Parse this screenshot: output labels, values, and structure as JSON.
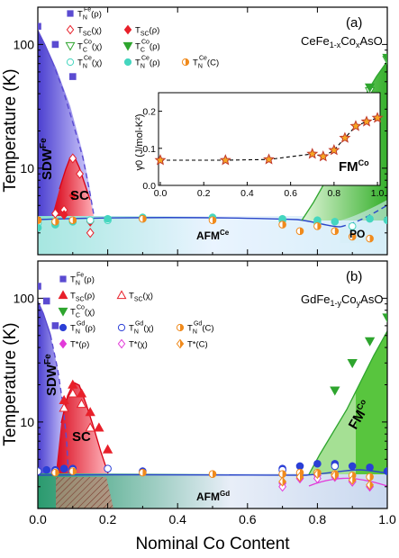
{
  "figure": {
    "xlabel": "Nominal Co Content",
    "x_ticks": [
      "0.0",
      "0.2",
      "0.4",
      "0.6",
      "0.8",
      "1.0"
    ]
  },
  "chart_data": [
    {
      "panel": "(a)",
      "type": "scatter",
      "formula": "CeFe1-xCoxAsO",
      "ylabel": "Temperature (K)",
      "yscale": "log",
      "xlim": [
        0,
        1
      ],
      "ylim": [
        2,
        200
      ],
      "y_ticks": [
        10,
        100
      ],
      "regions": [
        "SDW Fe",
        "SC",
        "AFM Ce",
        "FM Co",
        "PO"
      ],
      "legend": [
        {
          "label": "T_N^Fe(ρ)",
          "marker": "square",
          "color": "#5b4bd1",
          "filled": true
        },
        {
          "label": "T_SC(χ)",
          "marker": "diamond",
          "color": "#e8202a",
          "filled": false
        },
        {
          "label": "T_SC(ρ)",
          "marker": "diamond",
          "color": "#e8202a",
          "filled": true
        },
        {
          "label": "T_C^Co(χ)",
          "marker": "triangle-down",
          "color": "#2ea52e",
          "filled": false
        },
        {
          "label": "T_C^Co(ρ)",
          "marker": "triangle-down",
          "color": "#2ea52e",
          "filled": true
        },
        {
          "label": "T_N^Ce(χ)",
          "marker": "circle",
          "color": "#45d6bf",
          "filled": false
        },
        {
          "label": "T_N^Ce(ρ)",
          "marker": "circle",
          "color": "#45d6bf",
          "filled": true
        },
        {
          "label": "T_N^Ce(C)",
          "marker": "circle-half",
          "color": "#f08a1c",
          "filled": true
        }
      ],
      "series": [
        {
          "name": "T_N^Fe(ρ)",
          "x": [
            0.0,
            0.05,
            0.1
          ],
          "y": [
            140,
            100,
            55
          ]
        },
        {
          "name": "T_SC(χ)",
          "x": [
            0.05,
            0.075,
            0.1,
            0.12,
            0.15
          ],
          "y": [
            4.3,
            4.6,
            12.0,
            9.0,
            3.0
          ]
        },
        {
          "name": "T_SC(ρ)",
          "x": [
            0.075,
            0.1,
            0.15
          ],
          "y": [
            4.2,
            6.0,
            3.7
          ]
        },
        {
          "name": "T_C^Co(χ)",
          "x": [
            0.8,
            0.85,
            0.9,
            0.95,
            1.0
          ],
          "y": [
            8.5,
            12.0,
            22.0,
            42.0,
            75.0
          ]
        },
        {
          "name": "T_C^Co(ρ)",
          "x": [
            0.85,
            0.9,
            0.95,
            1.0
          ],
          "y": [
            15.0,
            27.0,
            45.0,
            78.0
          ]
        },
        {
          "name": "T_N^Ce(χ)",
          "x": [
            0.0,
            0.05,
            0.1,
            0.15,
            0.2,
            0.3,
            0.5,
            0.7,
            0.8,
            0.9
          ],
          "y": [
            3.6,
            3.6,
            3.7,
            3.8,
            3.8,
            3.9,
            3.9,
            3.8,
            3.6,
            3.4
          ]
        },
        {
          "name": "T_N^Ce(ρ)",
          "x": [
            0.0,
            0.05,
            0.1,
            0.2,
            0.3,
            0.5,
            0.7,
            0.8,
            0.85,
            0.95,
            1.0
          ],
          "y": [
            3.3,
            3.5,
            3.7,
            3.9,
            4.0,
            4.0,
            3.9,
            3.8,
            3.7,
            3.9,
            3.8
          ]
        },
        {
          "name": "T_N^Ce(C)",
          "x": [
            0.0,
            0.05,
            0.1,
            0.3,
            0.5,
            0.7,
            0.75,
            0.8,
            0.85,
            0.9,
            0.95
          ],
          "y": [
            3.8,
            3.7,
            3.8,
            3.9,
            3.8,
            3.5,
            3.1,
            3.4,
            3.1,
            2.8,
            2.7
          ]
        }
      ],
      "inset": {
        "type": "line",
        "ylabel": "γ0 (J/mol-K²)",
        "xlim": [
          0,
          1
        ],
        "ylim": [
          0,
          0.25
        ],
        "x_ticks": [
          "0.0",
          "0.2",
          "0.4",
          "0.6",
          "0.8",
          "1.0"
        ],
        "y_ticks": [
          "0.0",
          "0.1",
          "0.2"
        ],
        "x": [
          0.0,
          0.3,
          0.5,
          0.7,
          0.75,
          0.8,
          0.85,
          0.9,
          0.95,
          1.0
        ],
        "y": [
          0.068,
          0.068,
          0.07,
          0.085,
          0.078,
          0.095,
          0.128,
          0.16,
          0.172,
          0.182
        ]
      }
    },
    {
      "panel": "(b)",
      "type": "scatter",
      "formula": "GdFe1-yCoyAsO",
      "ylabel": "Temperature (K)",
      "yscale": "log",
      "xlim": [
        0,
        1
      ],
      "ylim": [
        2,
        200
      ],
      "y_ticks": [
        10,
        100
      ],
      "regions": [
        "SDW Fe",
        "SC",
        "AFM Gd",
        "FM Co"
      ],
      "legend": [
        {
          "label": "T_N^Fe(ρ)",
          "marker": "square",
          "color": "#5b4bd1",
          "filled": true
        },
        {
          "label": "T_SC(ρ)",
          "marker": "triangle-up",
          "color": "#e8202a",
          "filled": true
        },
        {
          "label": "T_SC(χ)",
          "marker": "triangle-up",
          "color": "#e8202a",
          "filled": false
        },
        {
          "label": "T_C^Co(χ)",
          "marker": "triangle-down",
          "color": "#2ea52e",
          "filled": true
        },
        {
          "label": "T_N^Gd(ρ)",
          "marker": "circle",
          "color": "#2b3fd6",
          "filled": true
        },
        {
          "label": "T_N^Gd(χ)",
          "marker": "circle",
          "color": "#2b3fd6",
          "filled": false
        },
        {
          "label": "T_N^Gd(C)",
          "marker": "circle-half",
          "color": "#f08a1c",
          "filled": true
        },
        {
          "label": "T*(ρ)",
          "marker": "diamond",
          "color": "#e23ad9",
          "filled": true
        },
        {
          "label": "T*(χ)",
          "marker": "diamond",
          "color": "#e23ad9",
          "filled": false
        },
        {
          "label": "T*(C)",
          "marker": "diamond-half",
          "color": "#f08a1c",
          "filled": true
        }
      ],
      "series": [
        {
          "name": "T_N^Fe(ρ)",
          "x": [
            0.0,
            0.025,
            0.05
          ],
          "y": [
            125,
            95,
            60
          ]
        },
        {
          "name": "T_SC(ρ)",
          "x": [
            0.075,
            0.1,
            0.125,
            0.15,
            0.175,
            0.2
          ],
          "y": [
            15.0,
            20.0,
            17.0,
            12.0,
            9.0,
            6.0
          ]
        },
        {
          "name": "T_SC(χ)",
          "x": [
            0.075,
            0.1,
            0.125,
            0.15
          ],
          "y": [
            13.0,
            17.0,
            14.0,
            9.0
          ]
        },
        {
          "name": "T_C^Co(χ)",
          "x": [
            0.85,
            0.9,
            0.95,
            1.0
          ],
          "y": [
            18.0,
            30.0,
            45.0,
            70.0
          ]
        },
        {
          "name": "T_N^Gd(ρ)",
          "x": [
            0.0,
            0.025,
            0.05,
            0.075,
            0.1,
            0.3,
            0.7,
            0.75,
            0.8,
            0.85,
            0.9,
            0.95,
            1.0
          ],
          "y": [
            4.0,
            4.1,
            4.1,
            4.2,
            4.2,
            4.0,
            4.2,
            4.4,
            4.6,
            4.6,
            4.4,
            4.3,
            4.0
          ]
        },
        {
          "name": "T_N^Gd(χ)",
          "x": [
            0.0,
            0.05,
            0.1,
            0.2,
            0.7,
            0.85
          ],
          "y": [
            4.0,
            4.0,
            4.1,
            4.2,
            4.1,
            4.4
          ]
        },
        {
          "name": "T_N^Gd(C)",
          "x": [
            0.05,
            0.1,
            0.3,
            0.5,
            0.7,
            0.75,
            0.8,
            0.85,
            0.9,
            0.95
          ],
          "y": [
            3.9,
            4.0,
            3.9,
            3.8,
            3.8,
            3.9,
            3.9,
            3.8,
            3.7,
            3.6
          ]
        },
        {
          "name": "T*(ρ)",
          "x": [
            0.7,
            0.75,
            0.8,
            0.85,
            0.9,
            0.95
          ],
          "y": [
            3.2,
            3.5,
            3.7,
            3.6,
            3.3,
            3.0
          ]
        },
        {
          "name": "T*(χ)",
          "x": [
            0.7,
            0.8,
            0.9
          ],
          "y": [
            3.0,
            3.5,
            3.3
          ]
        },
        {
          "name": "T*(C)",
          "x": [
            0.7,
            0.75,
            0.8,
            0.85,
            0.9,
            0.95
          ],
          "y": [
            3.3,
            3.6,
            3.8,
            3.7,
            3.4,
            3.1
          ]
        }
      ]
    }
  ]
}
